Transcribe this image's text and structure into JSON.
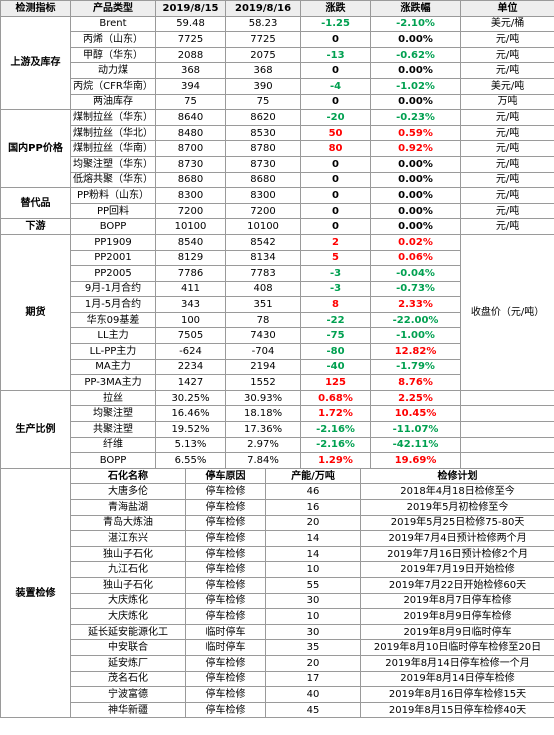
{
  "header": [
    "检测指标",
    "产品类型",
    "2019/8/15",
    "2019/8/16",
    "涨跌",
    "涨跌幅",
    "单位"
  ],
  "sections": [
    {
      "label": "上游及库存",
      "rows": [
        {
          "product": "Brent",
          "d1": "59.48",
          "d2": "58.23",
          "change": "-1.25",
          "pct": "-2.10%",
          "unit": "美元/桶"
        },
        {
          "product": "丙烯（山东）",
          "d1": "7725",
          "d2": "7725",
          "change": "0",
          "pct": "0.00%",
          "unit": "元/吨"
        },
        {
          "product": "甲醇（华东）",
          "d1": "2088",
          "d2": "2075",
          "change": "-13",
          "pct": "-0.62%",
          "unit": "元/吨"
        },
        {
          "product": "动力煤",
          "d1": "368",
          "d2": "368",
          "change": "0",
          "pct": "0.00%",
          "unit": "元/吨"
        },
        {
          "product": "丙烷（CFR华南）",
          "d1": "394",
          "d2": "390",
          "change": "-4",
          "pct": "-1.02%",
          "unit": "美元/吨"
        },
        {
          "product": "两油库存",
          "d1": "75",
          "d2": "75",
          "change": "0",
          "pct": "0.00%",
          "unit": "万吨"
        }
      ]
    },
    {
      "label": "国内PP价格",
      "rows": [
        {
          "product": "煤制拉丝（华东）",
          "d1": "8640",
          "d2": "8620",
          "change": "-20",
          "pct": "-0.23%",
          "unit": "元/吨"
        },
        {
          "product": "煤制拉丝（华北）",
          "d1": "8480",
          "d2": "8530",
          "change": "50",
          "pct": "0.59%",
          "unit": "元/吨"
        },
        {
          "product": "煤制拉丝（华南）",
          "d1": "8700",
          "d2": "8780",
          "change": "80",
          "pct": "0.92%",
          "unit": "元/吨"
        },
        {
          "product": "均聚注塑（华东）",
          "d1": "8730",
          "d2": "8730",
          "change": "0",
          "pct": "0.00%",
          "unit": "元/吨"
        },
        {
          "product": "低熔共聚（华东）",
          "d1": "8680",
          "d2": "8680",
          "change": "0",
          "pct": "0.00%",
          "unit": "元/吨"
        }
      ]
    },
    {
      "label": "替代品",
      "rows": [
        {
          "product": "PP粉料（山东）",
          "d1": "8300",
          "d2": "8300",
          "change": "0",
          "pct": "0.00%",
          "unit": "元/吨"
        },
        {
          "product": "PP回料",
          "d1": "7200",
          "d2": "7200",
          "change": "0",
          "pct": "0.00%",
          "unit": "元/吨"
        }
      ]
    },
    {
      "label": "下游",
      "rows": [
        {
          "product": "BOPP",
          "d1": "10100",
          "d2": "10100",
          "change": "0",
          "pct": "0.00%",
          "unit": "元/吨"
        }
      ]
    },
    {
      "label": "期货",
      "unit": "收盘价（元/吨）",
      "rows": [
        {
          "product": "PP1909",
          "d1": "8540",
          "d2": "8542",
          "change": "2",
          "pct": "0.02%"
        },
        {
          "product": "PP2001",
          "d1": "8129",
          "d2": "8134",
          "change": "5",
          "pct": "0.06%"
        },
        {
          "product": "PP2005",
          "d1": "7786",
          "d2": "7783",
          "change": "-3",
          "pct": "-0.04%"
        },
        {
          "product": "9月-1月合约",
          "d1": "411",
          "d2": "408",
          "change": "-3",
          "pct": "-0.73%"
        },
        {
          "product": "1月-5月合约",
          "d1": "343",
          "d2": "351",
          "change": "8",
          "pct": "2.33%"
        },
        {
          "product": "华东09基差",
          "d1": "100",
          "d2": "78",
          "change": "-22",
          "pct": "-22.00%"
        },
        {
          "product": "LL主力",
          "d1": "7505",
          "d2": "7430",
          "change": "-75",
          "pct": "-1.00%"
        },
        {
          "product": "LL-PP主力",
          "d1": "-624",
          "d2": "-704",
          "change": "-80",
          "pct": "12.82%"
        },
        {
          "product": "MA主力",
          "d1": "2234",
          "d2": "2194",
          "change": "-40",
          "pct": "-1.79%"
        },
        {
          "product": "PP-3MA主力",
          "d1": "1427",
          "d2": "1552",
          "change": "125",
          "pct": "8.76%"
        }
      ]
    },
    {
      "label": "生产比例",
      "rows": [
        {
          "product": "拉丝",
          "d1": "30.25%",
          "d2": "30.93%",
          "change": "0.68%",
          "pct": "2.25%"
        },
        {
          "product": "均聚注塑",
          "d1": "16.46%",
          "d2": "18.18%",
          "change": "1.72%",
          "pct": "10.45%"
        },
        {
          "product": "共聚注塑",
          "d1": "19.52%",
          "d2": "17.36%",
          "change": "-2.16%",
          "pct": "-11.07%"
        },
        {
          "product": "纤维",
          "d1": "5.13%",
          "d2": "2.97%",
          "change": "-2.16%",
          "pct": "-42.11%"
        },
        {
          "product": "BOPP",
          "d1": "6.55%",
          "d2": "7.84%",
          "change": "1.29%",
          "pct": "19.69%"
        }
      ]
    }
  ],
  "maintenance": {
    "label": "装置检修",
    "columns": [
      "石化名称",
      "停车原因",
      "产能/万吨",
      "检修计划"
    ],
    "rows": [
      [
        "大唐多伦",
        "停车检修",
        "46",
        "2018年4月18日检修至今"
      ],
      [
        "青海盐湖",
        "停车检修",
        "16",
        "2019年5月初检修至今"
      ],
      [
        "青岛大炼油",
        "停车检修",
        "20",
        "2019年5月25日检修75-80天"
      ],
      [
        "湛江东兴",
        "停车检修",
        "14",
        "2019年7月4日预计检修两个月"
      ],
      [
        "独山子石化",
        "停车检修",
        "14",
        "2019年7月16日预计检修2个月"
      ],
      [
        "九江石化",
        "停车检修",
        "10",
        "2019年7月19日开始检修"
      ],
      [
        "独山子石化",
        "停车检修",
        "55",
        "2019年7月22日开始检修60天"
      ],
      [
        "大庆炼化",
        "停车检修",
        "30",
        "2019年8月7日停车检修"
      ],
      [
        "大庆炼化",
        "停车检修",
        "10",
        "2019年8月9日停车检修"
      ],
      [
        "延长延安能源化工",
        "临时停车",
        "30",
        "2019年8月9日临时停车"
      ],
      [
        "中安联合",
        "临时停车",
        "35",
        "2019年8月10日临时停车检修至20日"
      ],
      [
        "延安炼厂",
        "停车检修",
        "20",
        "2019年8月14日停车检修一个月"
      ],
      [
        "茂名石化",
        "停车检修",
        "17",
        "2019年8月14日停车检修"
      ],
      [
        "宁波富德",
        "停车检修",
        "40",
        "2019年8月16日停车检修15天"
      ],
      [
        "神华新疆",
        "停车检修",
        "45",
        "2019年8月15日停车检修40天"
      ]
    ]
  }
}
